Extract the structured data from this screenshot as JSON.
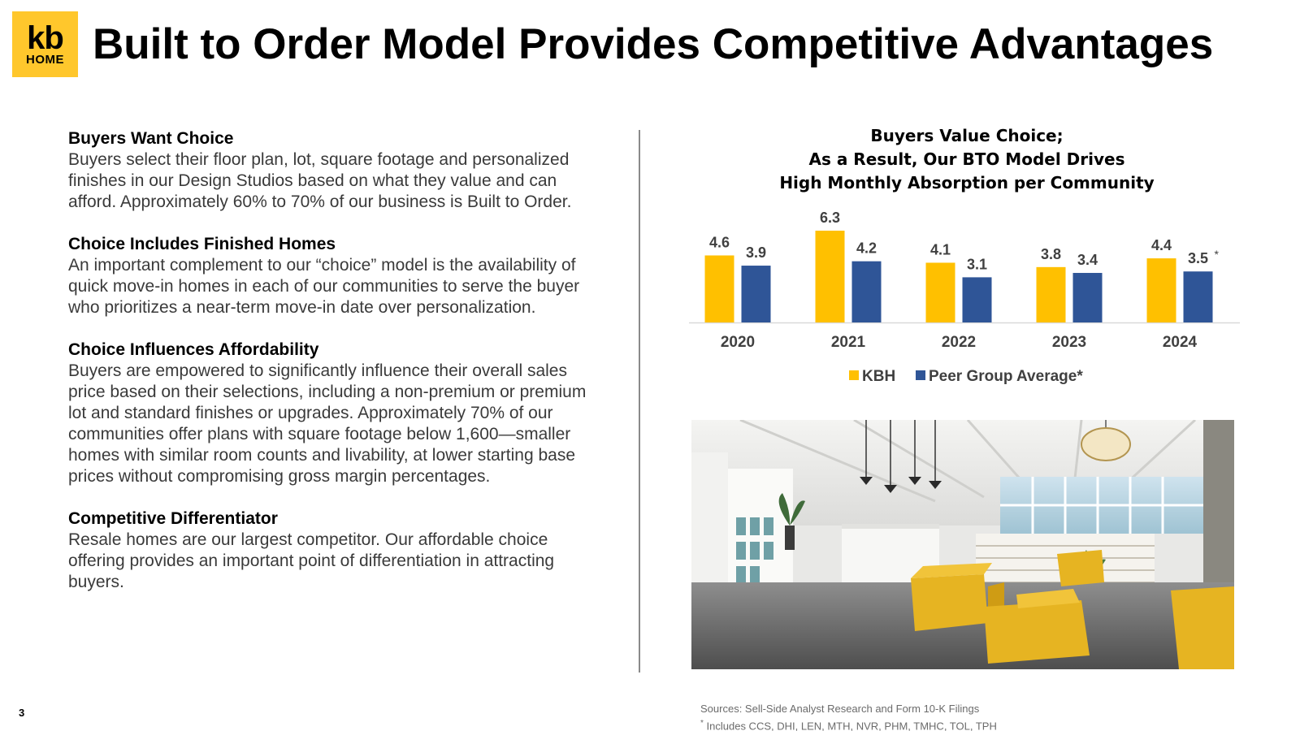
{
  "header": {
    "logo": {
      "line1": "kb",
      "line2": "HOME",
      "background": "#FFC72C"
    },
    "title": "Built to Order Model Provides Competitive Advantages"
  },
  "sections": [
    {
      "heading": "Buyers Want Choice",
      "body": "Buyers select their floor plan, lot, square footage and personalized finishes in our Design Studios based on what they value and can afford.  Approximately 60% to 70% of our business is Built to Order."
    },
    {
      "heading": "Choice Includes Finished Homes",
      "body": "An important complement to our “choice” model is the availability of quick move-in homes in each of our communities to serve the buyer who prioritizes a near-term move-in date over personalization."
    },
    {
      "heading": "Choice Influences Affordability",
      "body": "Buyers are empowered to significantly influence their overall sales price based on their selections, including a non-premium or premium lot and standard finishes or upgrades.  Approximately 70% of our communities offer plans with square footage below 1,600—smaller homes with similar room counts and livability, at lower starting base prices without compromising gross margin percentages."
    },
    {
      "heading": "Competitive Differentiator",
      "body": "Resale homes are our largest competitor.  Our affordable choice offering provides an important point of differentiation in attracting buyers."
    }
  ],
  "chart_data": {
    "type": "bar",
    "title_lines": [
      "Buyers Value Choice;",
      "As a Result, Our BTO Model Drives",
      "High Monthly Absorption per Community"
    ],
    "categories": [
      "2020",
      "2021",
      "2022",
      "2023",
      "2024"
    ],
    "series": [
      {
        "name": "KBH",
        "values": [
          4.6,
          6.3,
          4.1,
          3.8,
          4.4
        ],
        "color": "#FFC000"
      },
      {
        "name": "Peer Group Average*",
        "values": [
          3.9,
          4.2,
          3.1,
          3.4,
          3.5
        ],
        "color": "#2F5597"
      }
    ],
    "annotations": [
      {
        "series": 1,
        "index": 4,
        "text": "*"
      }
    ],
    "ylim": [
      0,
      6.3
    ],
    "grid": false,
    "legend": "bottom",
    "xlabel": "",
    "ylabel": ""
  },
  "photo": {
    "description_icon": "design-studio-photo"
  },
  "footer": {
    "sources": "Sources: Sell-Side Analyst Research and Form 10-K Filings",
    "footnote_mark": "*",
    "footnote": " Includes CCS, DHI, LEN, MTH, NVR, PHM, TMHC, TOL, TPH",
    "page_number": "3"
  }
}
